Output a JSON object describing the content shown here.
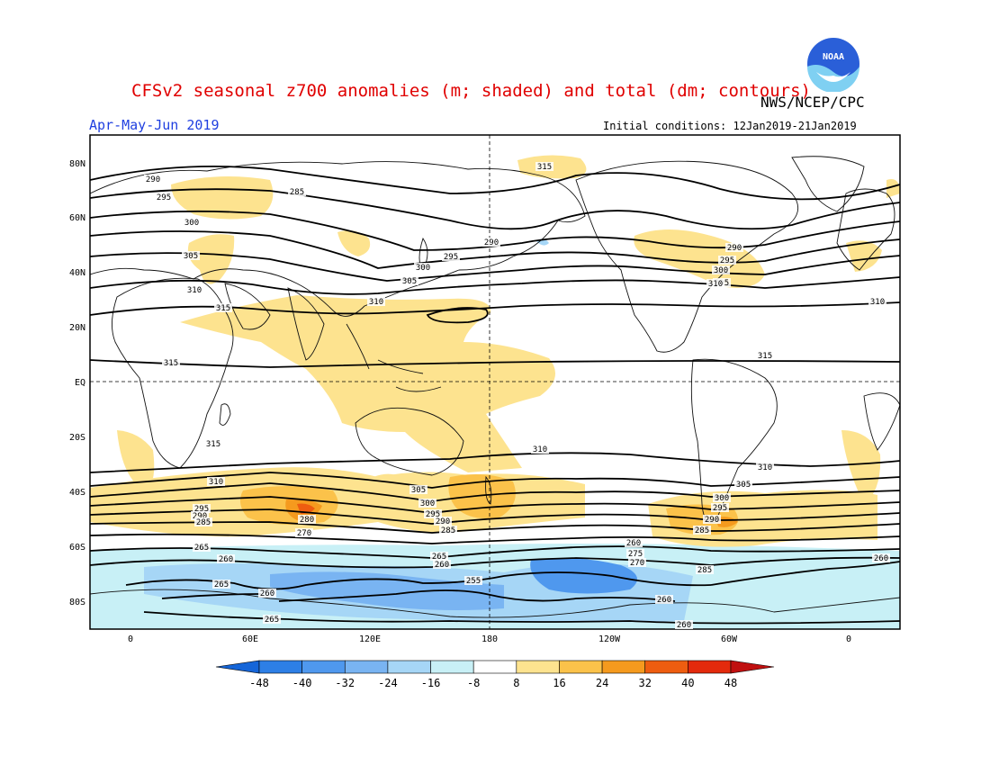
{
  "title": "CFSv2 seasonal z700 anomalies (m; shaded) and total (dm; contours)",
  "agency": "NWS/NCEP/CPC",
  "logo_text": "NOAA",
  "season": "Apr-May-Jun 2019",
  "initial_conditions": "Initial conditions: 12Jan2019-21Jan2019",
  "lat_labels": [
    "80N",
    "60N",
    "40N",
    "20N",
    "EQ",
    "20S",
    "40S",
    "60S",
    "80S"
  ],
  "lon_labels": [
    "0",
    "60E",
    "120E",
    "180",
    "120W",
    "60W",
    "0"
  ],
  "colorbar": {
    "labels": [
      "-48",
      "-40",
      "-32",
      "-24",
      "-16",
      "-8",
      "8",
      "16",
      "24",
      "32",
      "40",
      "48"
    ],
    "colors": [
      "#1565d8",
      "#2d7fe6",
      "#4f98ee",
      "#79b4f2",
      "#a6d6f6",
      "#c8f0f6",
      "#ffffff",
      "#fde38f",
      "#fbc24a",
      "#f59a1e",
      "#ee5d10",
      "#e32a0c",
      "#c01010"
    ]
  },
  "contour_labels": {
    "north": [
      "290",
      "295",
      "300",
      "305",
      "310",
      "315",
      "285",
      "290",
      "295",
      "300",
      "305",
      "310",
      "315",
      "290",
      "295",
      "300",
      "305",
      "310",
      "315",
      "310",
      "315"
    ],
    "south": [
      "315",
      "315",
      "310",
      "310",
      "310",
      "305",
      "300",
      "295",
      "290",
      "285",
      "305",
      "300",
      "295",
      "290",
      "285",
      "295",
      "290",
      "285",
      "280",
      "270",
      "265",
      "260",
      "265",
      "260",
      "275",
      "270",
      "260",
      "285",
      "260",
      "255",
      "265",
      "260",
      "265",
      "260",
      "260"
    ]
  }
}
